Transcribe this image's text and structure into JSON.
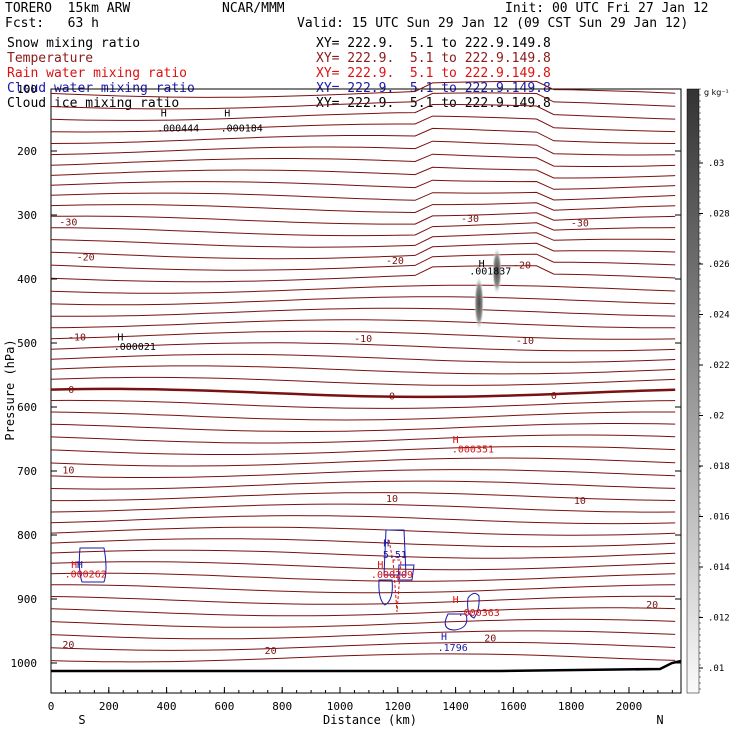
{
  "header": {
    "model": "TORERO  15km ARW",
    "org": "NCAR/MMM",
    "init": "Init: 00 UTC Fri 27 Jan 12",
    "fcst": "Fcst:   63 h",
    "valid": "Valid: 15 UTC Sun 29 Jan 12 (09 CST Sun 29 Jan 12)"
  },
  "fields": [
    {
      "name": "Snow mixing ratio",
      "color": "#000000",
      "xy": "XY= 222.9.  5.1 to 222.9.149.8"
    },
    {
      "name": "Temperature",
      "color": "#8b1a1a",
      "xy": "XY= 222.9.  5.1 to 222.9.149.8"
    },
    {
      "name": "Rain water mixing ratio",
      "color": "#dd1111",
      "xy": "XY= 222.9.  5.1 to 222.9.149.8"
    },
    {
      "name": "Cloud water mixing ratio",
      "color": "#1a1aaa",
      "xy": "XY= 222.9.  5.1 to 222.9.149.8"
    },
    {
      "name": "Cloud ice mixing ratio",
      "color": "#000000",
      "xy": "XY= 222.9.  5.1 to 222.9.149.8"
    }
  ],
  "chart_data": {
    "type": "contour",
    "xlabel": "Distance (km)",
    "ylabel": "Pressure (hPa)",
    "xlim": [
      0,
      2180
    ],
    "ylim": [
      1050,
      100
    ],
    "x_ticks": [
      0,
      200,
      400,
      600,
      800,
      1000,
      1200,
      1400,
      1600,
      1800,
      2000
    ],
    "y_ticks": [
      200,
      300,
      400,
      500,
      600,
      700,
      800,
      900,
      1000
    ],
    "y_top_label": "100",
    "x_end_labels": {
      "left": "S",
      "right": "N"
    },
    "colorbar": {
      "unit": "g kg⁻¹",
      "labels": [
        ".03",
        ".028",
        ".026",
        ".024",
        ".022",
        ".02",
        ".018",
        ".016",
        ".014",
        ".012",
        ".01"
      ],
      "range": [
        0.01,
        0.03
      ]
    },
    "isotherm_labels": [
      {
        "text": "-30",
        "x": 60,
        "p": 310
      },
      {
        "text": "-30",
        "x": 1450,
        "p": 305
      },
      {
        "text": "-30",
        "x": 1830,
        "p": 312
      },
      {
        "text": "-20",
        "x": 120,
        "p": 365
      },
      {
        "text": "-20",
        "x": 1190,
        "p": 370
      },
      {
        "text": "-20",
        "x": 1630,
        "p": 377
      },
      {
        "text": "-10",
        "x": 90,
        "p": 490
      },
      {
        "text": "-10",
        "x": 1080,
        "p": 492
      },
      {
        "text": "-10",
        "x": 1640,
        "p": 495
      },
      {
        "text": "0",
        "x": 70,
        "p": 572
      },
      {
        "text": "0",
        "x": 1180,
        "p": 582
      },
      {
        "text": "0",
        "x": 1740,
        "p": 581
      },
      {
        "text": "10",
        "x": 60,
        "p": 698
      },
      {
        "text": "10",
        "x": 1180,
        "p": 742
      },
      {
        "text": "10",
        "x": 1830,
        "p": 745
      },
      {
        "text": "20",
        "x": 2080,
        "p": 908
      },
      {
        "text": "20",
        "x": 60,
        "p": 970
      },
      {
        "text": "20",
        "x": 760,
        "p": 980
      },
      {
        "text": "20",
        "x": 1520,
        "p": 960
      }
    ],
    "maxima": [
      {
        "text": ".000444",
        "x": 440,
        "p": 163,
        "color": "#000000"
      },
      {
        "text": ".000184",
        "x": 660,
        "p": 163,
        "color": "#000000"
      },
      {
        "text": ".000021",
        "x": 290,
        "p": 505,
        "color": "#000000"
      },
      {
        "text": ".001837",
        "x": 1520,
        "p": 387,
        "color": "#000000"
      },
      {
        "text": ".000351",
        "x": 1460,
        "p": 665,
        "color": "#dd1111"
      },
      {
        "text": ".000262",
        "x": 120,
        "p": 860,
        "color": "#dd1111"
      },
      {
        "text": ".000209",
        "x": 1180,
        "p": 861,
        "color": "#dd1111"
      },
      {
        "text": ".000363",
        "x": 1480,
        "p": 920,
        "color": "#dd1111"
      },
      {
        "text": "5.51",
        "x": 1190,
        "p": 830,
        "color": "#1a1aaa"
      },
      {
        "text": ".1796",
        "x": 1390,
        "p": 975,
        "color": "#1a1aaa"
      }
    ],
    "h_marks": [
      {
        "x": 390,
        "p": 140,
        "color": "#000000"
      },
      {
        "x": 610,
        "p": 140,
        "color": "#000000"
      },
      {
        "x": 240,
        "p": 490,
        "color": "#000000"
      },
      {
        "x": 1490,
        "p": 375,
        "color": "#000000"
      },
      {
        "x": 1400,
        "p": 650,
        "color": "#dd1111"
      },
      {
        "x": 80,
        "p": 845,
        "color": "#dd1111"
      },
      {
        "x": 100,
        "p": 845,
        "color": "#1a1aaa"
      },
      {
        "x": 1160,
        "p": 812,
        "color": "#1a1aaa"
      },
      {
        "x": 1140,
        "p": 845,
        "color": "#dd1111"
      },
      {
        "x": 1400,
        "p": 900,
        "color": "#dd1111"
      },
      {
        "x": 1360,
        "p": 958,
        "color": "#1a1aaa"
      }
    ]
  }
}
